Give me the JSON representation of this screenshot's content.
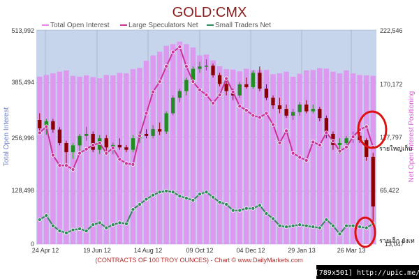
{
  "chart_data": {
    "type": "bar",
    "title": "GOLD:CMX",
    "legend": [
      {
        "name": "Total Open Interest",
        "color": "#ee82ee"
      },
      {
        "name": "Large Speculators Net",
        "color": "#cc3399"
      },
      {
        "name": "Small Traders Net",
        "color": "#2e8b57"
      }
    ],
    "ylabel_left": "Total Open Interest",
    "ylabel_right": "Net Open Interest Positioning",
    "left_ticks": [
      "513,992",
      "385,494",
      "256,996",
      "128,498",
      "0"
    ],
    "right_ticks": [
      "222,546",
      "170,172",
      "117,797",
      "65,422",
      "13,047"
    ],
    "x_ticks": [
      "24 Apr 12",
      "19 Jun 12",
      "14 Aug 12",
      "09 Oct 12",
      "04 Dec 12",
      "29 Jan 13",
      "26 Mar 13"
    ],
    "left_range": [
      0,
      513992
    ],
    "right_range": [
      13047,
      222546
    ],
    "open_interest": [
      402000,
      406000,
      410000,
      414000,
      417000,
      404000,
      402000,
      405000,
      401000,
      398000,
      406000,
      405000,
      411000,
      410000,
      420000,
      423000,
      440000,
      453000,
      462000,
      476000,
      480000,
      486000,
      480000,
      472000,
      453000,
      455000,
      441000,
      427000,
      420000,
      419000,
      415000,
      421000,
      418000,
      418000,
      418000,
      408000,
      410000,
      414000,
      402000,
      409000,
      417000,
      418000,
      422000,
      421000,
      414000,
      410000,
      417000,
      410000,
      406000,
      405000,
      404000
    ],
    "large_speculators_net": [
      122000,
      128000,
      100000,
      90000,
      90000,
      86000,
      102000,
      106000,
      110000,
      112000,
      102000,
      107000,
      96000,
      92000,
      91000,
      119000,
      141000,
      162000,
      172000,
      187000,
      201000,
      206000,
      187000,
      172000,
      164000,
      159000,
      151000,
      159000,
      175000,
      162000,
      148000,
      144000,
      139000,
      137000,
      141000,
      130000,
      112000,
      124000,
      102000,
      98000,
      95000,
      113000,
      110000,
      122000,
      114000,
      104000,
      108000,
      118000,
      125000,
      128000,
      108000
    ],
    "small_traders_net": [
      37000,
      41000,
      31000,
      26000,
      24000,
      27000,
      28000,
      26000,
      32000,
      34000,
      29000,
      32000,
      34000,
      33000,
      47000,
      52000,
      57000,
      61000,
      64000,
      65000,
      64000,
      60000,
      58000,
      56000,
      62000,
      64000,
      59000,
      54000,
      52000,
      46000,
      46000,
      48000,
      48000,
      51000,
      43000,
      38000,
      31000,
      30000,
      31000,
      32000,
      31000,
      30000,
      29000,
      37000,
      31000,
      23000,
      31000,
      31000,
      30000,
      29000,
      33000
    ],
    "price_candles": [
      {
        "o": 1643,
        "h": 1660,
        "l": 1616,
        "c": 1622
      },
      {
        "o": 1622,
        "h": 1646,
        "l": 1606,
        "c": 1640
      },
      {
        "o": 1640,
        "h": 1646,
        "l": 1611,
        "c": 1619
      },
      {
        "o": 1619,
        "h": 1625,
        "l": 1579,
        "c": 1585
      },
      {
        "o": 1585,
        "h": 1591,
        "l": 1528,
        "c": 1562
      },
      {
        "o": 1562,
        "h": 1585,
        "l": 1545,
        "c": 1579
      },
      {
        "o": 1579,
        "h": 1608,
        "l": 1562,
        "c": 1603
      },
      {
        "o": 1603,
        "h": 1626,
        "l": 1591,
        "c": 1608
      },
      {
        "o": 1608,
        "h": 1614,
        "l": 1562,
        "c": 1568
      },
      {
        "o": 1568,
        "h": 1605,
        "l": 1557,
        "c": 1597
      },
      {
        "o": 1597,
        "h": 1605,
        "l": 1562,
        "c": 1574
      },
      {
        "o": 1574,
        "h": 1586,
        "l": 1557,
        "c": 1580
      },
      {
        "o": 1580,
        "h": 1597,
        "l": 1568,
        "c": 1574
      },
      {
        "o": 1574,
        "h": 1580,
        "l": 1562,
        "c": 1568
      },
      {
        "o": 1568,
        "h": 1605,
        "l": 1562,
        "c": 1597
      },
      {
        "o": 1597,
        "h": 1614,
        "l": 1585,
        "c": 1608
      },
      {
        "o": 1608,
        "h": 1620,
        "l": 1597,
        "c": 1603
      },
      {
        "o": 1603,
        "h": 1630,
        "l": 1597,
        "c": 1620
      },
      {
        "o": 1620,
        "h": 1637,
        "l": 1605,
        "c": 1614
      },
      {
        "o": 1614,
        "h": 1665,
        "l": 1608,
        "c": 1660
      },
      {
        "o": 1660,
        "h": 1705,
        "l": 1655,
        "c": 1699
      },
      {
        "o": 1699,
        "h": 1722,
        "l": 1688,
        "c": 1716
      },
      {
        "o": 1716,
        "h": 1750,
        "l": 1705,
        "c": 1744
      },
      {
        "o": 1744,
        "h": 1778,
        "l": 1739,
        "c": 1772
      },
      {
        "o": 1772,
        "h": 1790,
        "l": 1762,
        "c": 1778
      },
      {
        "o": 1778,
        "h": 1796,
        "l": 1768,
        "c": 1780
      },
      {
        "o": 1780,
        "h": 1785,
        "l": 1750,
        "c": 1756
      },
      {
        "o": 1756,
        "h": 1762,
        "l": 1728,
        "c": 1734
      },
      {
        "o": 1734,
        "h": 1745,
        "l": 1705,
        "c": 1716
      },
      {
        "o": 1716,
        "h": 1722,
        "l": 1693,
        "c": 1705
      },
      {
        "o": 1705,
        "h": 1739,
        "l": 1699,
        "c": 1733
      },
      {
        "o": 1733,
        "h": 1750,
        "l": 1722,
        "c": 1726
      },
      {
        "o": 1726,
        "h": 1768,
        "l": 1722,
        "c": 1762
      },
      {
        "o": 1762,
        "h": 1778,
        "l": 1716,
        "c": 1722
      },
      {
        "o": 1722,
        "h": 1733,
        "l": 1693,
        "c": 1699
      },
      {
        "o": 1699,
        "h": 1705,
        "l": 1671,
        "c": 1680
      },
      {
        "o": 1680,
        "h": 1699,
        "l": 1660,
        "c": 1671
      },
      {
        "o": 1671,
        "h": 1682,
        "l": 1648,
        "c": 1654
      },
      {
        "o": 1654,
        "h": 1671,
        "l": 1643,
        "c": 1663
      },
      {
        "o": 1663,
        "h": 1688,
        "l": 1654,
        "c": 1682
      },
      {
        "o": 1682,
        "h": 1693,
        "l": 1660,
        "c": 1665
      },
      {
        "o": 1665,
        "h": 1682,
        "l": 1660,
        "c": 1671
      },
      {
        "o": 1671,
        "h": 1676,
        "l": 1640,
        "c": 1648
      },
      {
        "o": 1648,
        "h": 1654,
        "l": 1597,
        "c": 1608
      },
      {
        "o": 1608,
        "h": 1614,
        "l": 1568,
        "c": 1580
      },
      {
        "o": 1580,
        "h": 1597,
        "l": 1557,
        "c": 1585
      },
      {
        "o": 1585,
        "h": 1603,
        "l": 1574,
        "c": 1597
      },
      {
        "o": 1597,
        "h": 1614,
        "l": 1585,
        "c": 1603
      },
      {
        "o": 1603,
        "h": 1614,
        "l": 1585,
        "c": 1592
      },
      {
        "o": 1592,
        "h": 1597,
        "l": 1540,
        "c": 1550
      },
      {
        "o": 1550,
        "h": 1560,
        "l": 1380,
        "c": 1425
      }
    ],
    "price_range": [
      1330,
      1870
    ],
    "footer": "(CONTRACTS OF 100 TROY OUNCES)  - Chart © www.DailyMarkets.com",
    "annotations": [
      {
        "text": "รายใหญ่เก็บ"
      },
      {
        "text": "รายเล็ก ยังเท"
      }
    ],
    "credit": "[789x501] http://upic.me/",
    "colors": {
      "bars": "#dd99f0",
      "large": "#cc3399",
      "small": "#2e8b57",
      "price_up": "#228b22",
      "price_down": "#8b0000",
      "circle": "#dd1111",
      "grid": "#9aa6b8",
      "plot_bg": "#c6d4ec",
      "title": "#8b1a1a",
      "left_axis_label": "#6a7fd0",
      "right_axis_label": "#dd55dd"
    }
  }
}
